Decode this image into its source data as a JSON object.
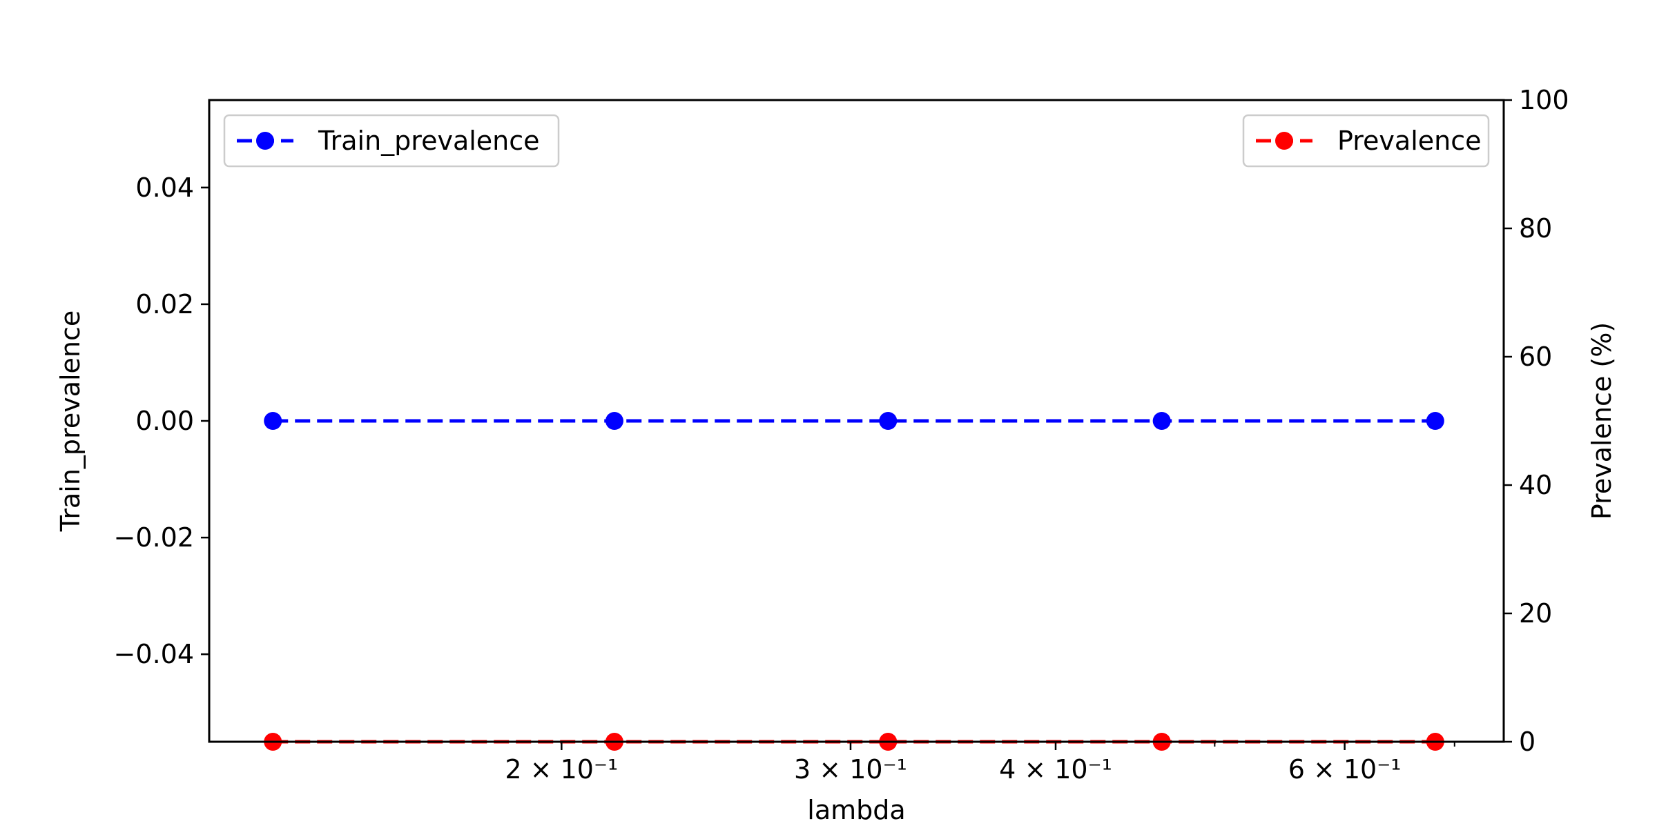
{
  "chart_data": {
    "type": "line",
    "x": [
      0.1334,
      0.2154,
      0.3162,
      0.4642,
      0.6813
    ],
    "x_scale": "log",
    "xlabel": "lambda",
    "xlim": [
      0.122,
      0.75
    ],
    "x_ticks": [
      {
        "value": 0.2,
        "label": "2 × 10⁻¹"
      },
      {
        "value": 0.3,
        "label": "3 × 10⁻¹"
      },
      {
        "value": 0.4,
        "label": "4 × 10⁻¹"
      },
      {
        "value": 0.6,
        "label": "6 × 10⁻¹"
      }
    ],
    "x_minor_ticks": [
      0.5,
      0.7
    ],
    "left_axis": {
      "label": "Train_prevalence",
      "ylim": [
        -0.055,
        0.055
      ],
      "ticks": [
        {
          "value": 0.04,
          "label": "0.04"
        },
        {
          "value": 0.02,
          "label": "0.02"
        },
        {
          "value": 0.0,
          "label": "0.00"
        },
        {
          "value": -0.02,
          "label": "−0.02"
        },
        {
          "value": -0.04,
          "label": "−0.04"
        }
      ]
    },
    "right_axis": {
      "label": "Prevalence (%)",
      "ylim": [
        0,
        100
      ],
      "ticks": [
        {
          "value": 100,
          "label": "100"
        },
        {
          "value": 80,
          "label": "80"
        },
        {
          "value": 60,
          "label": "60"
        },
        {
          "value": 40,
          "label": "40"
        },
        {
          "value": 20,
          "label": "20"
        },
        {
          "value": 0,
          "label": "0"
        }
      ]
    },
    "series": [
      {
        "name": "Train_prevalence",
        "axis": "left",
        "color": "#0000ff",
        "linestyle": "dashed",
        "marker": "circle",
        "values": [
          0,
          0,
          0,
          0,
          0
        ]
      },
      {
        "name": "Prevalence",
        "axis": "right",
        "color": "#ff0000",
        "linestyle": "dashed",
        "marker": "circle",
        "values": [
          0,
          0,
          0,
          0,
          0
        ]
      }
    ],
    "legends": [
      {
        "series": "Train_prevalence",
        "placement": "upper left"
      },
      {
        "series": "Prevalence",
        "placement": "upper right"
      }
    ],
    "grid": false
  }
}
